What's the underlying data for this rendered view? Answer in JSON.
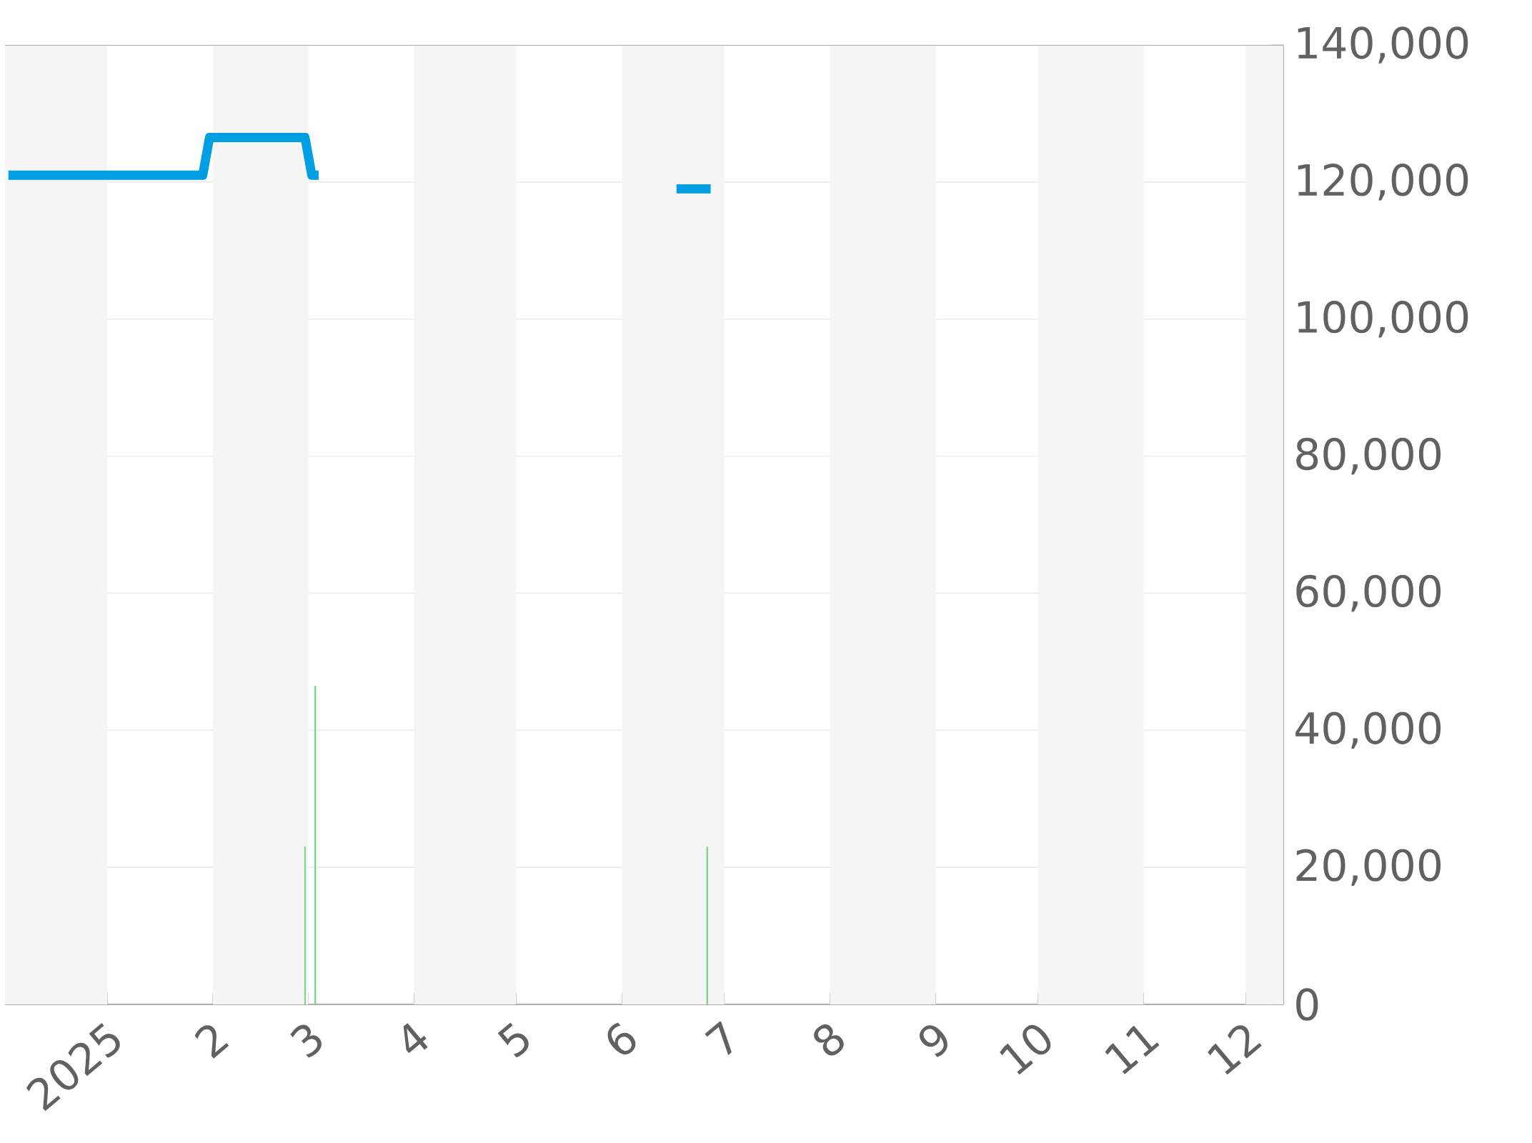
{
  "chart_data": {
    "type": "line",
    "xlim": [
      "2024-12-02",
      "2025-12-12"
    ],
    "xticks": [
      {
        "value": "2025-01-01",
        "label": "2025"
      },
      {
        "value": "2025-02-01",
        "label": "2"
      },
      {
        "value": "2025-03-01",
        "label": "3"
      },
      {
        "value": "2025-04-01",
        "label": "4"
      },
      {
        "value": "2025-05-01",
        "label": "5"
      },
      {
        "value": "2025-06-01",
        "label": "6"
      },
      {
        "value": "2025-07-01",
        "label": "7"
      },
      {
        "value": "2025-08-01",
        "label": "8"
      },
      {
        "value": "2025-09-01",
        "label": "9"
      },
      {
        "value": "2025-10-01",
        "label": "10"
      },
      {
        "value": "2025-11-01",
        "label": "11"
      },
      {
        "value": "2025-12-01",
        "label": "12"
      }
    ],
    "ylim": [
      0,
      140000
    ],
    "yticks": [
      0,
      {
        "value": 20000,
        "label": "20,000"
      },
      {
        "value": 40000,
        "label": "40,000"
      },
      {
        "value": 60000,
        "label": "60,000"
      },
      {
        "value": 80000,
        "label": "80,000"
      },
      {
        "value": 100000,
        "label": "100,000"
      },
      {
        "value": 120000,
        "label": "120,000"
      },
      {
        "value": 140000,
        "label": "140,000"
      }
    ],
    "grid": "y",
    "bands": [
      {
        "axis": "x",
        "from": "2024-12-02",
        "to": "2025-01-01",
        "color": "#f5f5f5"
      },
      {
        "axis": "x",
        "from": "2025-02-01",
        "to": "2025-03-01",
        "color": "#f5f5f5"
      },
      {
        "axis": "x",
        "from": "2025-04-01",
        "to": "2025-05-01",
        "color": "#f5f5f5"
      },
      {
        "axis": "x",
        "from": "2025-06-01",
        "to": "2025-07-01",
        "color": "#f5f5f5"
      },
      {
        "axis": "x",
        "from": "2025-08-01",
        "to": "2025-09-01",
        "color": "#f5f5f5"
      },
      {
        "axis": "x",
        "from": "2025-10-01",
        "to": "2025-11-01",
        "color": "#f5f5f5"
      },
      {
        "axis": "x",
        "from": "2025-12-01",
        "to": "2025-12-12",
        "color": "#f5f5f5"
      }
    ],
    "series": [
      {
        "type": "bar",
        "color": "#7fd48a",
        "x": [
          "2025-02-28",
          "2025-03-03",
          "2025-06-26"
        ],
        "values": [
          23000,
          46500,
          23000
        ]
      },
      {
        "color": "#009fe3",
        "x": [
          "2024-12-03",
          "2025-01-29",
          "2025-01-31",
          "2025-02-28",
          "2025-03-02",
          "2025-03-04",
          "2025-03-05",
          "2025-06-17",
          "2025-06-27"
        ],
        "values": [
          121000,
          121000,
          126500,
          126500,
          121000,
          121000,
          null,
          119000,
          119000
        ]
      }
    ]
  }
}
